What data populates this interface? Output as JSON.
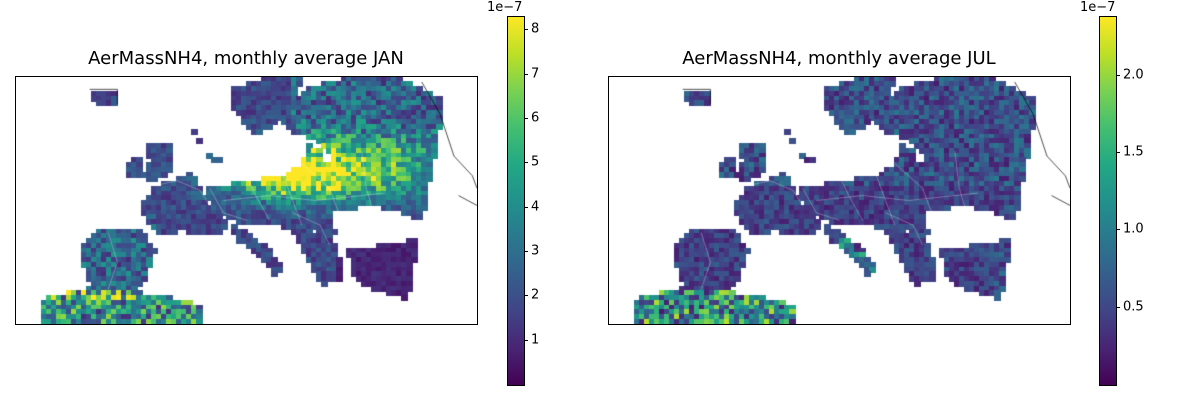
{
  "panels": [
    {
      "title": "AerMassNH4, monthly average JAN",
      "colorbar": {
        "exponent": "1e−7",
        "min": 0.0,
        "max": 8.3,
        "ticks": [
          {
            "value": 1,
            "label": "1"
          },
          {
            "value": 2,
            "label": "2"
          },
          {
            "value": 3,
            "label": "3"
          },
          {
            "value": 4,
            "label": "4"
          },
          {
            "value": 5,
            "label": "5"
          },
          {
            "value": 6,
            "label": "6"
          },
          {
            "value": 7,
            "label": "7"
          },
          {
            "value": 8,
            "label": "8"
          }
        ]
      }
    },
    {
      "title": "AerMassNH4, monthly average JUL",
      "colorbar": {
        "exponent": "1e−7",
        "min": 0.0,
        "max": 2.38,
        "ticks": [
          {
            "value": 0.5,
            "label": "0.5"
          },
          {
            "value": 1.0,
            "label": "1.0"
          },
          {
            "value": 1.5,
            "label": "1.5"
          },
          {
            "value": 2.0,
            "label": "2.0"
          }
        ]
      }
    }
  ],
  "colormap": "viridis"
}
